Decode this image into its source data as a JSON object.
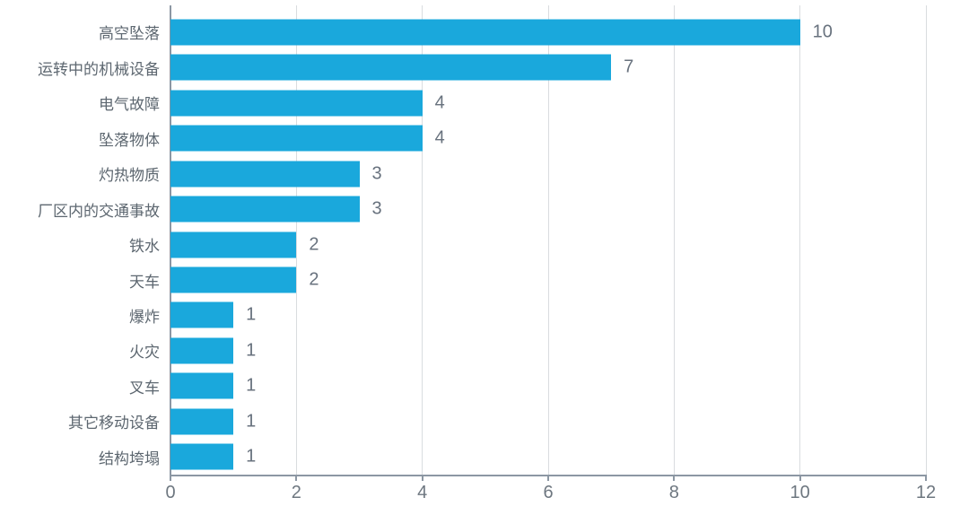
{
  "chart_data": {
    "type": "bar",
    "orientation": "horizontal",
    "title": "",
    "xlabel": "",
    "ylabel": "",
    "categories": [
      "高空坠落",
      "运转中的机械设备",
      "电气故障",
      "坠落物体",
      "灼热物质",
      "厂区内的交通事故",
      "铁水",
      "天车",
      "爆炸",
      "火灾",
      "叉车",
      "其它移动设备",
      "结构垮塌"
    ],
    "values": [
      10,
      7,
      4,
      4,
      3,
      3,
      2,
      2,
      1,
      1,
      1,
      1,
      1
    ],
    "data_labels": [
      "10",
      "7",
      "4",
      "4",
      "3",
      "3",
      "2",
      "2",
      "1",
      "1",
      "1",
      "1",
      "1"
    ],
    "xlim": [
      0,
      12
    ],
    "x_ticks": [
      0,
      2,
      4,
      6,
      8,
      10,
      12
    ],
    "x_tick_labels": [
      "0",
      "2",
      "4",
      "6",
      "8",
      "10",
      "12"
    ],
    "grid": "vertical-major-gridlines",
    "legend": "none",
    "colors": {
      "bar": "#1aa8dc",
      "gridline": "#d9dcdf",
      "axis": "#8c97a3",
      "category_label": "#5d6770",
      "value_label": "#68727e",
      "tick_label": "#6e7780",
      "background": "#ffffff"
    }
  }
}
